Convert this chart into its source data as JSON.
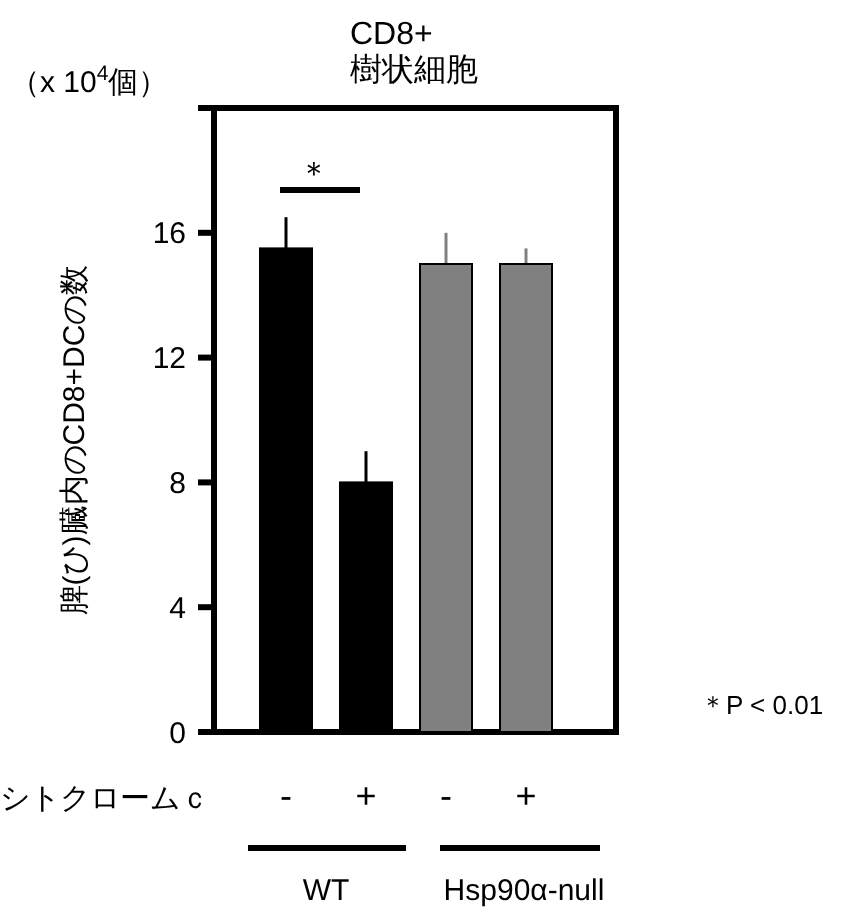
{
  "chart_data": {
    "type": "bar",
    "title": "CD8+\n樹状細胞",
    "ylabel": "脾(ひ)臓内のCD8+DCの数",
    "categories": [
      "-",
      "+",
      "-",
      "+"
    ],
    "values": [
      15.5,
      8,
      15,
      15
    ],
    "colors": [
      "#000000",
      "#000000",
      "#808080",
      "#808080"
    ],
    "errors": [
      [
        15.5,
        16.5
      ],
      [
        8,
        9
      ],
      [
        15,
        16
      ],
      [
        15,
        15.5
      ]
    ],
    "ylim": [
      0,
      20
    ],
    "yticks": [
      0,
      4,
      8,
      12,
      16,
      {
        "value": 20,
        "label": null
      }
    ],
    "annotations": [
      "（x 10$^{4}$個）",
      "シトクロームｃ",
      "WT",
      "Hsp90α-null",
      "＊",
      "＊P < 0.01"
    ]
  }
}
